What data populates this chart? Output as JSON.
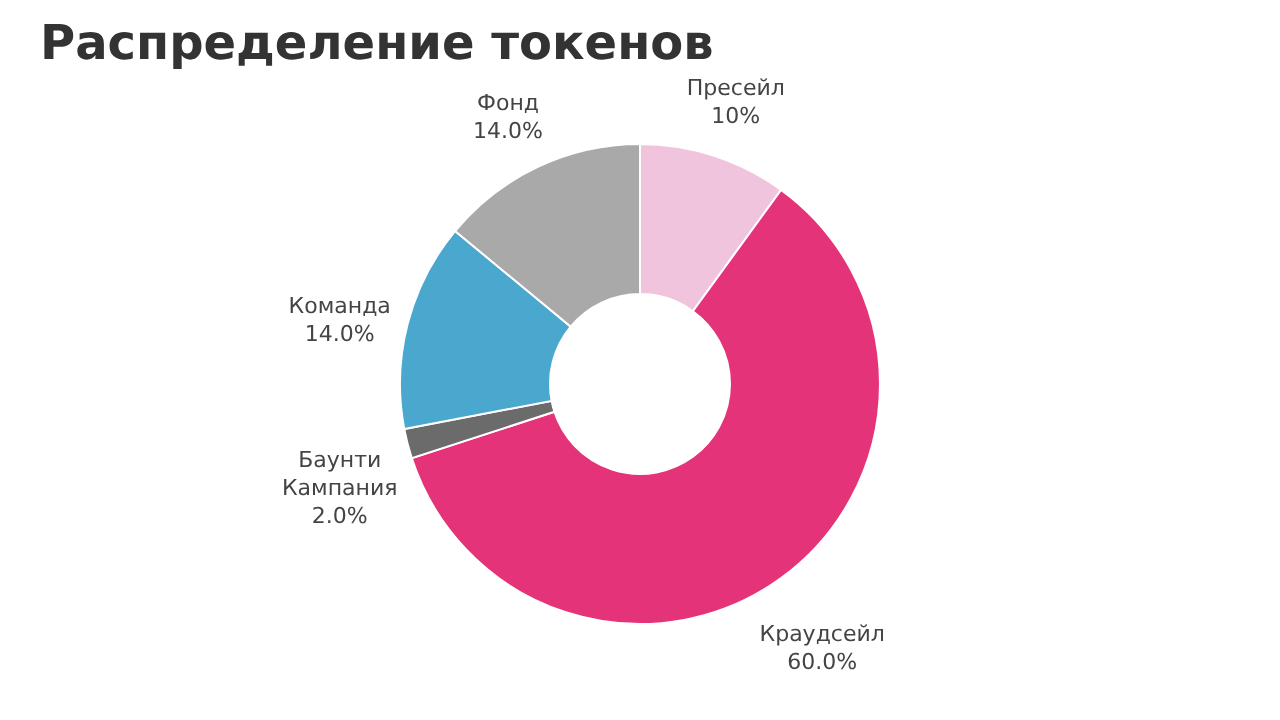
{
  "chart_data": {
    "type": "donut",
    "title": "Распределение токенов",
    "categories": [
      "Пресейл",
      "Краудсейл",
      "Баунти Кампания",
      "Команда",
      "Фонд"
    ],
    "values": [
      10,
      60,
      2,
      14,
      14
    ],
    "colors": [
      "#f0c4dc",
      "#e5337a",
      "#6b6b6b",
      "#4aa8cf",
      "#a9a9a9"
    ],
    "value_labels": [
      "10%",
      "60.0%",
      "2.0%",
      "14.0%",
      "14.0%"
    ],
    "legend": false
  }
}
